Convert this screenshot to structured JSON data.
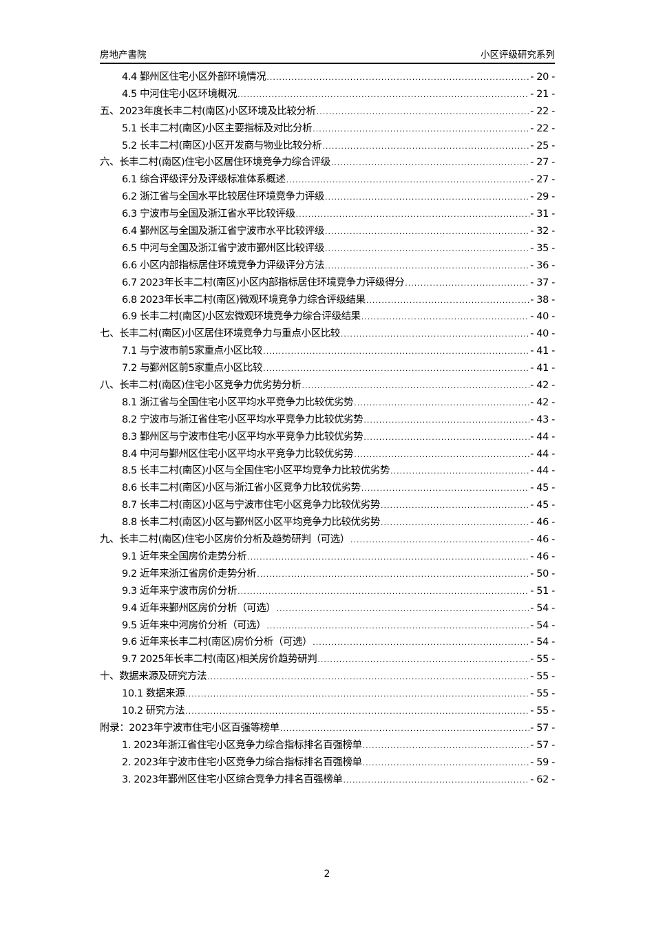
{
  "header": {
    "left": "房地产書院",
    "right": "小区评级研究系列"
  },
  "toc": [
    {
      "level": 2,
      "title": "4.4 鄞州区住宅小区外部环境情况",
      "page": "- 20 -"
    },
    {
      "level": 2,
      "title": "4.5 中河住宅小区环境概况",
      "page": "- 21 -"
    },
    {
      "level": 1,
      "title": "五、2023年度长丰二村(南区)小区环境及比较分析",
      "page": "- 22 -"
    },
    {
      "level": 2,
      "title": "5.1 长丰二村(南区)小区主要指标及对比分析",
      "page": "- 22 -"
    },
    {
      "level": 2,
      "title": "5.2 长丰二村(南区)小区开发商与物业比较分析",
      "page": "- 25 -"
    },
    {
      "level": 1,
      "title": "六、长丰二村(南区)住宅小区居住环境竞争力综合评级",
      "page": "- 27 -"
    },
    {
      "level": 2,
      "title": "6.1 综合评级评分及评级标准体系概述",
      "page": "- 27 -"
    },
    {
      "level": 2,
      "title": "6.2 浙江省与全国水平比较居住环境竞争力评级",
      "page": "- 29 -"
    },
    {
      "level": 2,
      "title": "6.3 宁波市与全国及浙江省水平比较评级",
      "page": "- 31 -"
    },
    {
      "level": 2,
      "title": "6.4 鄞州区与全国及浙江省宁波市水平比较评级",
      "page": "- 32 -"
    },
    {
      "level": 2,
      "title": "6.5 中河与全国及浙江省宁波市鄞州区比较评级",
      "page": "- 35 -"
    },
    {
      "level": 2,
      "title": "6.6 小区内部指标居住环境竞争力评级评分方法",
      "page": "- 36 -"
    },
    {
      "level": 2,
      "title": "6.7 2023年长丰二村(南区)小区内部指标居住环境竞争力评级得分",
      "page": "- 37 -"
    },
    {
      "level": 2,
      "title": "6.8 2023年长丰二村(南区)微观环境竞争力综合评级结果",
      "page": "- 38 -"
    },
    {
      "level": 2,
      "title": "6.9 长丰二村(南区)小区宏微观环境竞争力综合评级结果",
      "page": "- 40 -"
    },
    {
      "level": 1,
      "title": "七、长丰二村(南区)小区居住环境竞争力与重点小区比较",
      "page": "- 40 -"
    },
    {
      "level": 2,
      "title": "7.1 与宁波市前5家重点小区比较",
      "page": "- 41 -"
    },
    {
      "level": 2,
      "title": "7.2 与鄞州区前5家重点小区比较",
      "page": "- 41 -"
    },
    {
      "level": 1,
      "title": "八、长丰二村(南区)住宅小区竞争力优劣势分析",
      "page": "- 42 -"
    },
    {
      "level": 2,
      "title": "8.1 浙江省与全国住宅小区平均水平竞争力比较优劣势",
      "page": "- 42 -"
    },
    {
      "level": 2,
      "title": "8.2 宁波市与浙江省住宅小区平均水平竞争力比较优劣势",
      "page": "- 43 -"
    },
    {
      "level": 2,
      "title": "8.3 鄞州区与宁波市住宅小区平均水平竞争力比较优劣势",
      "page": "- 44 -"
    },
    {
      "level": 2,
      "title": "8.4 中河与鄞州区住宅小区平均水平竞争力比较优劣势",
      "page": "- 44 -"
    },
    {
      "level": 2,
      "title": "8.5 长丰二村(南区)小区与全国住宅小区平均竞争力比较优劣势",
      "page": "- 44 -"
    },
    {
      "level": 2,
      "title": "8.6 长丰二村(南区)小区与浙江省小区竞争力比较优劣势",
      "page": "- 45 -"
    },
    {
      "level": 2,
      "title": "8.7 长丰二村(南区)小区与宁波市住宅小区竞争力比较优劣势",
      "page": "- 45 -"
    },
    {
      "level": 2,
      "title": "8.8 长丰二村(南区)小区与鄞州区小区平均竞争力比较优劣势",
      "page": "- 46 -"
    },
    {
      "level": 1,
      "title": "九、长丰二村(南区)住宅小区房价分析及趋势研判（可选）",
      "page": "- 46 -"
    },
    {
      "level": 2,
      "title": "9.1 近年来全国房价走势分析",
      "page": "- 46 -"
    },
    {
      "level": 2,
      "title": "9.2 近年来浙江省房价走势分析",
      "page": "- 50 -"
    },
    {
      "level": 2,
      "title": "9.3 近年来宁波市房价分析",
      "page": "- 51 -"
    },
    {
      "level": 2,
      "title": "9.4 近年来鄞州区房价分析（可选）",
      "page": "- 54 -"
    },
    {
      "level": 2,
      "title": "9.5 近年来中河房价分析（可选）",
      "page": "- 54 -"
    },
    {
      "level": 2,
      "title": "9.6 近年来长丰二村(南区)房价分析（可选）",
      "page": "- 54 -"
    },
    {
      "level": 2,
      "title": "9.7 2025年长丰二村(南区)相关房价趋势研判",
      "page": "- 55 -"
    },
    {
      "level": 1,
      "title": "十、数据来源及研究方法",
      "page": "- 55 -"
    },
    {
      "level": 2,
      "title": "10.1 数据来源",
      "page": "- 55 -"
    },
    {
      "level": 2,
      "title": "10.2 研究方法",
      "page": "- 55 -"
    },
    {
      "level": 1,
      "title": "附录：2023年宁波市住宅小区百强等榜单",
      "page": "- 57 -"
    },
    {
      "level": 2,
      "title": "1. 2023年浙江省住宅小区竞争力综合指标排名百强榜单",
      "page": "- 57 -"
    },
    {
      "level": 2,
      "title": "2. 2023年宁波市住宅小区竞争力综合指标排名百强榜单",
      "page": "- 59 -"
    },
    {
      "level": 2,
      "title": "3. 2023年鄞州区住宅小区综合竞争力排名百强榜单",
      "page": "- 62 -"
    }
  ],
  "footer": {
    "page_number": "2"
  }
}
